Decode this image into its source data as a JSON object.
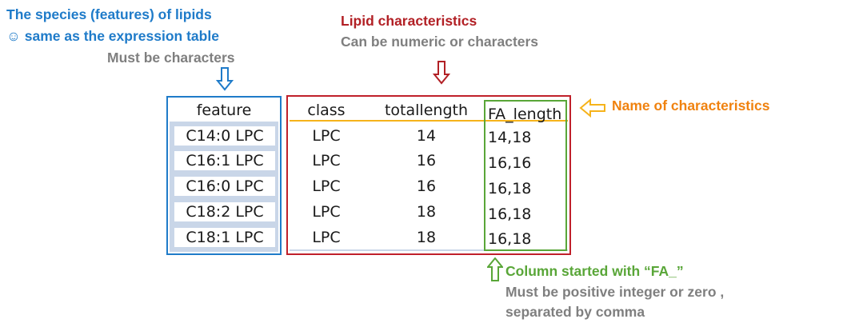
{
  "annotations": {
    "features_title": "The species (features) of lipids",
    "features_same": "same as the expression table",
    "features_smile": "☺",
    "features_rule": "Must be characters",
    "lipid_title": "Lipid characteristics",
    "lipid_rule": "Can be numeric or characters",
    "name_label": "Name of characteristics",
    "fa_title": "Column started with “FA_”",
    "fa_rule_1": "Must be positive integer or zero ,",
    "fa_rule_2": "separated by comma"
  },
  "table": {
    "headers": [
      "feature",
      "class",
      "totallength",
      "FA_length"
    ],
    "rows": [
      [
        "C14:0 LPC",
        "LPC",
        "14",
        "14,18"
      ],
      [
        "C16:1 LPC",
        "LPC",
        "16",
        "16,16"
      ],
      [
        "C16:0 LPC",
        "LPC",
        "16",
        "16,18"
      ],
      [
        "C18:2 LPC",
        "LPC",
        "18",
        "16,18"
      ],
      [
        "C18:1 LPC",
        "LPC",
        "18",
        "16,18"
      ]
    ]
  },
  "colors": {
    "feature_box": "#1f7bc9",
    "characteristics_box": "#c0202a",
    "header_line": "#f6b31b",
    "fa_box": "#59a638",
    "name_arrow": "#f6b31b"
  },
  "icons": {
    "features_arrow": "down-arrow-icon",
    "lipid_arrow": "down-arrow-icon",
    "name_arrow": "left-arrow-icon",
    "fa_arrow": "up-arrow-icon"
  }
}
